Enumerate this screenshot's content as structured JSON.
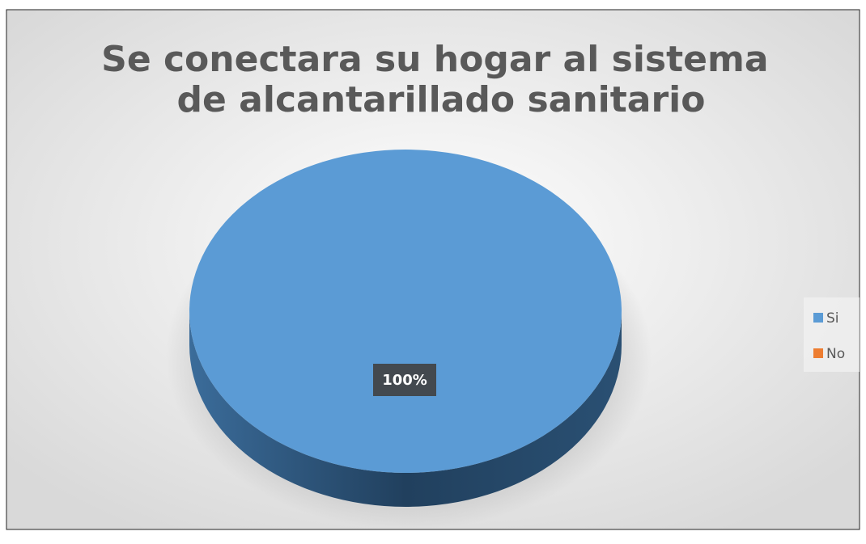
{
  "chart_data": {
    "type": "pie",
    "title": "Se conectara su hogar al sistema de alcantarillado sanitario",
    "categories": [
      "Si",
      "No"
    ],
    "values": [
      100,
      0
    ],
    "value_labels": [
      "100%",
      null
    ],
    "colors": [
      "#5b9bd5",
      "#ed7d31"
    ],
    "legend": "right"
  }
}
